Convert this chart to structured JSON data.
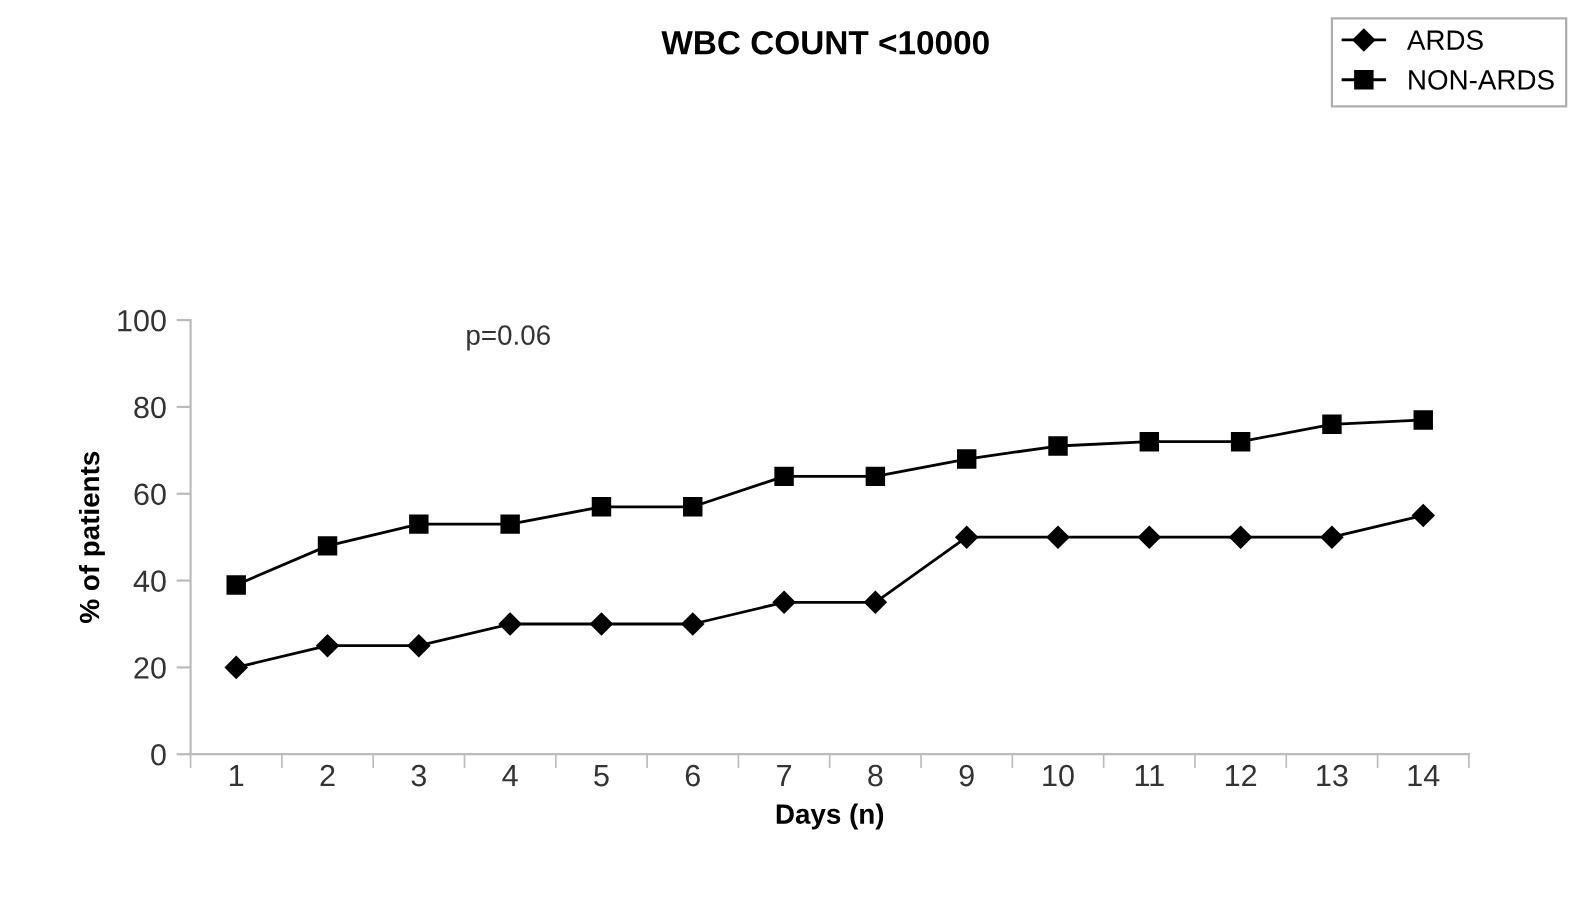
{
  "chart_data": {
    "type": "line",
    "title": "WBC COUNT <10000",
    "xlabel": "Days (n)",
    "ylabel": "% of patients",
    "categories": [
      "1",
      "2",
      "3",
      "4",
      "5",
      "6",
      "7",
      "8",
      "9",
      "10",
      "11",
      "12",
      "13",
      "14"
    ],
    "series": [
      {
        "name": "ARDS",
        "color": "#000000",
        "marker": "diamond",
        "values": [
          20,
          25,
          25,
          30,
          30,
          30,
          35,
          35,
          50,
          50,
          50,
          50,
          50,
          55
        ]
      },
      {
        "name": "NON-ARDS",
        "color": "#000000",
        "marker": "square",
        "values": [
          39,
          48,
          53,
          53,
          57,
          57,
          64,
          64,
          68,
          71,
          72,
          72,
          76,
          77
        ]
      }
    ],
    "ylim": [
      0,
      100
    ],
    "yticks": [
      0,
      20,
      40,
      60,
      80,
      100
    ],
    "grid": false,
    "legend": "top right",
    "line_style": "solid",
    "annotations": [
      "p=0.06"
    ]
  }
}
